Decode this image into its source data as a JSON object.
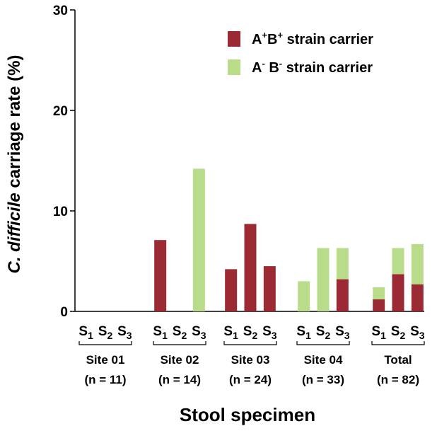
{
  "chart_data": {
    "type": "bar",
    "stacked": true,
    "ylabel_italic": "C. difficile",
    "ylabel_rest": " carriage rate (%)",
    "xlabel": "Stool  specimen",
    "ylim": [
      0,
      30
    ],
    "yticks": [
      "0",
      "10",
      "20",
      "30"
    ],
    "specimen_prefix": "S",
    "specimens": [
      "1",
      "2",
      "3"
    ],
    "groups": [
      {
        "name": "Site 01",
        "n": "(n = 11)"
      },
      {
        "name": "Site 02",
        "n": "(n = 14)"
      },
      {
        "name": "Site 03",
        "n": "(n = 24)"
      },
      {
        "name": "Site 04",
        "n": "(n = 33)"
      },
      {
        "name": "Total",
        "n": "(n = 82)"
      }
    ],
    "series": [
      {
        "legend_main1": "A",
        "legend_sup1": "+",
        "legend_main2": "B",
        "legend_sup2": "+",
        "legend_rest": " strain carrier",
        "color": "#9b2a34",
        "values": [
          [
            0,
            0,
            0
          ],
          [
            7.1,
            0,
            0
          ],
          [
            4.2,
            8.7,
            4.5
          ],
          [
            0,
            0,
            3.2
          ],
          [
            1.2,
            3.7,
            2.7
          ]
        ]
      },
      {
        "legend_main1": "A",
        "legend_sup1": "-",
        "legend_main2": " B",
        "legend_sup2": "-",
        "legend_rest": " strain carrier",
        "color": "#b9dc8a",
        "values": [
          [
            0,
            0,
            0
          ],
          [
            0,
            0,
            14.2
          ],
          [
            0,
            0,
            0
          ],
          [
            3.0,
            6.3,
            3.1
          ],
          [
            1.2,
            2.6,
            4.0
          ]
        ]
      }
    ]
  }
}
